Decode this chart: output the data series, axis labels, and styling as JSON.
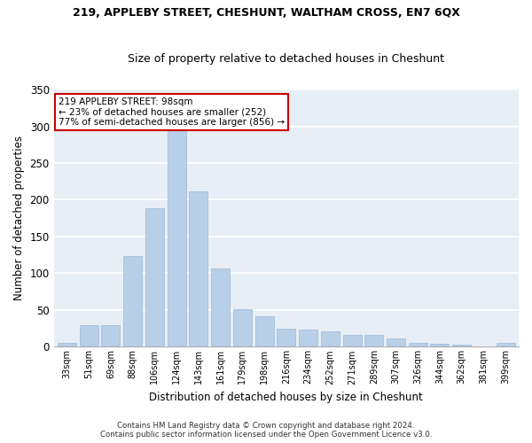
{
  "title": "219, APPLEBY STREET, CHESHUNT, WALTHAM CROSS, EN7 6QX",
  "subtitle": "Size of property relative to detached houses in Cheshunt",
  "xlabel": "Distribution of detached houses by size in Cheshunt",
  "ylabel": "Number of detached properties",
  "bar_color": "#b8cfe8",
  "bar_edge_color": "#9ab8d8",
  "background_color": "#e8eef5",
  "categories": [
    "33sqm",
    "51sqm",
    "69sqm",
    "88sqm",
    "106sqm",
    "124sqm",
    "143sqm",
    "161sqm",
    "179sqm",
    "198sqm",
    "216sqm",
    "234sqm",
    "252sqm",
    "271sqm",
    "289sqm",
    "307sqm",
    "326sqm",
    "344sqm",
    "362sqm",
    "381sqm",
    "399sqm"
  ],
  "values": [
    5,
    30,
    30,
    124,
    188,
    295,
    212,
    107,
    51,
    41,
    24,
    23,
    21,
    16,
    16,
    11,
    5,
    4,
    3,
    1,
    5
  ],
  "ylim": [
    0,
    350
  ],
  "annotation_line1": "219 APPLEBY STREET: 98sqm",
  "annotation_line2": "← 23% of detached houses are smaller (252)",
  "annotation_line3": "77% of semi-detached houses are larger (856) →",
  "annotation_box_color": "#ffffff",
  "annotation_box_edge_color": "#cc0000",
  "footer_line1": "Contains HM Land Registry data © Crown copyright and database right 2024.",
  "footer_line2": "Contains public sector information licensed under the Open Government Licence v3.0."
}
